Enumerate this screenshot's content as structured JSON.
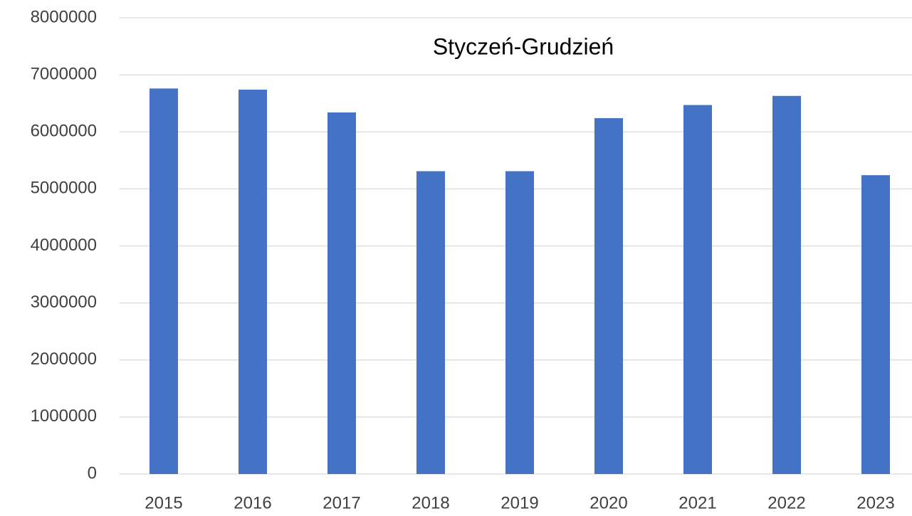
{
  "chart_data": {
    "type": "bar",
    "title": "Styczeń-Grudzień",
    "categories": [
      "2015",
      "2016",
      "2017",
      "2018",
      "2019",
      "2020",
      "2021",
      "2022",
      "2023"
    ],
    "values": [
      6760000,
      6740000,
      6340000,
      5310000,
      5310000,
      6240000,
      6470000,
      6630000,
      5240000
    ],
    "color": "#4472c4",
    "ylim": [
      0,
      8000000
    ],
    "yticks": [
      0,
      1000000,
      2000000,
      3000000,
      4000000,
      5000000,
      6000000,
      7000000,
      8000000
    ],
    "grid": true
  }
}
